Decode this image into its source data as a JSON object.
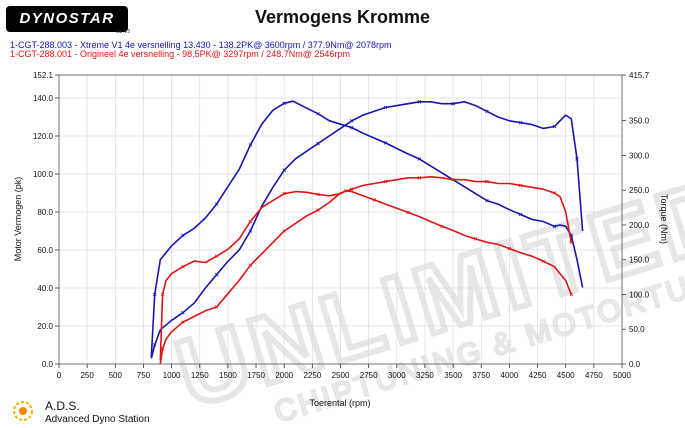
{
  "header": {
    "logo_text": "DYNOSTAR",
    "logo_sub": "cal V3",
    "title": "Vermogens Kromme"
  },
  "runs": [
    {
      "label": "1-CGT-288.003 - Xtreme V1 4e versnelling 13.430   - 138.2PK@ 3600rpm / 377.9Nm@ 2078rpm",
      "color": "#1515b3"
    },
    {
      "label": "1-CGT-288.001 - Origineel 4e versnelling  - 98.5PK@ 3297rpm / 248.7Nm@ 2546rpm",
      "color": "#e21414"
    }
  ],
  "footer": {
    "brand": "A.D.S.",
    "subtitle": "Advanced Dyno Station"
  },
  "watermark": {
    "text_big": "UNLIMITED TUNING",
    "text_small": "CHIPTUNING & MOTORTUNING",
    "color": "#e4e4e4"
  },
  "chart_data": {
    "type": "line",
    "title": "Vermogens Kromme",
    "xlabel": "Toerental (rpm)",
    "ylabel": "Motor Vermogen (pk)",
    "y2label": "Torque (Nm)",
    "xlim": [
      0,
      5000
    ],
    "ylim": [
      0,
      152.1
    ],
    "y2lim": [
      0,
      415.7
    ],
    "xticks": [
      0,
      250,
      500,
      750,
      1000,
      1250,
      1500,
      1750,
      2000,
      2250,
      2500,
      2750,
      3000,
      3250,
      3500,
      3750,
      4000,
      4250,
      4500,
      4750,
      5000
    ],
    "yticks": [
      "0.0",
      "20.0",
      "40.0",
      "60.0",
      "80.0",
      "100.0",
      "120.0",
      "140.0",
      "152.1"
    ],
    "y2ticks": [
      "0.0",
      "50.0",
      "100.0",
      "150.0",
      "200.0",
      "250.0",
      "300.0",
      "350.0",
      "415.7"
    ],
    "grid": true,
    "series": [
      {
        "name": "1-CGT-288.003 - Xtreme V1 4e versnelling 13.430",
        "quantity": "power",
        "axis": "left",
        "color": "#1515b3",
        "x": [
          820,
          850,
          900,
          1000,
          1100,
          1200,
          1300,
          1400,
          1500,
          1600,
          1700,
          1800,
          1900,
          2000,
          2100,
          2200,
          2300,
          2400,
          2500,
          2600,
          2700,
          2800,
          2900,
          3000,
          3100,
          3200,
          3300,
          3400,
          3500,
          3600,
          3700,
          3800,
          3900,
          4000,
          4100,
          4200,
          4300,
          4400,
          4500,
          4550,
          4600,
          4650
        ],
        "y": [
          3,
          10,
          18,
          23,
          27,
          32,
          40,
          47,
          54,
          60,
          70,
          83,
          93,
          102,
          108,
          112,
          116,
          120,
          124,
          128,
          131,
          133,
          135,
          136,
          137,
          138,
          138,
          137,
          137,
          138,
          136,
          133,
          130,
          128,
          127,
          126,
          124,
          125,
          131,
          129,
          108,
          70
        ]
      },
      {
        "name": "1-CGT-288.003 - Xtreme V1 4e versnelling 13.430",
        "quantity": "torque",
        "axis": "right",
        "color": "#1515b3",
        "x": [
          820,
          850,
          900,
          1000,
          1100,
          1200,
          1300,
          1400,
          1500,
          1600,
          1700,
          1800,
          1900,
          2000,
          2078,
          2200,
          2300,
          2400,
          2500,
          2600,
          2700,
          2800,
          2900,
          3000,
          3100,
          3200,
          3300,
          3400,
          3500,
          3600,
          3700,
          3800,
          3900,
          4000,
          4100,
          4200,
          4300,
          4400,
          4450,
          4500,
          4550,
          4600,
          4650
        ],
        "y": [
          10,
          100,
          150,
          170,
          185,
          195,
          210,
          230,
          255,
          280,
          315,
          345,
          365,
          375,
          378,
          368,
          360,
          350,
          345,
          340,
          332,
          325,
          318,
          310,
          302,
          295,
          285,
          275,
          265,
          255,
          245,
          235,
          230,
          222,
          215,
          208,
          205,
          198,
          200,
          198,
          185,
          150,
          110
        ]
      },
      {
        "name": "1-CGT-288.001 - Origineel 4e versnelling",
        "quantity": "power",
        "axis": "left",
        "color": "#e21414",
        "x": [
          900,
          920,
          950,
          1000,
          1100,
          1200,
          1300,
          1400,
          1500,
          1600,
          1700,
          1800,
          1900,
          2000,
          2100,
          2200,
          2300,
          2400,
          2500,
          2600,
          2700,
          2800,
          2900,
          3000,
          3100,
          3200,
          3300,
          3400,
          3500,
          3600,
          3700,
          3800,
          3900,
          4000,
          4100,
          4200,
          4300,
          4400,
          4450,
          4500,
          4550
        ],
        "y": [
          0,
          8,
          13,
          17,
          22,
          25,
          28,
          30,
          37,
          44,
          52,
          58,
          64,
          70,
          74,
          78,
          81,
          85,
          90,
          92,
          94,
          95,
          96,
          97,
          98,
          98,
          98.5,
          98,
          97,
          97,
          96,
          96,
          95,
          95,
          94,
          93,
          92,
          90,
          88,
          80,
          64
        ]
      },
      {
        "name": "1-CGT-288.001 - Origineel 4e versnelling",
        "quantity": "torque",
        "axis": "right",
        "color": "#e21414",
        "x": [
          900,
          920,
          950,
          1000,
          1100,
          1200,
          1300,
          1400,
          1500,
          1600,
          1700,
          1800,
          1900,
          2000,
          2100,
          2200,
          2300,
          2400,
          2500,
          2546,
          2600,
          2700,
          2800,
          2900,
          3000,
          3100,
          3200,
          3300,
          3400,
          3500,
          3600,
          3700,
          3800,
          3900,
          4000,
          4100,
          4200,
          4300,
          4400,
          4500,
          4550
        ],
        "y": [
          5,
          100,
          120,
          130,
          140,
          148,
          146,
          155,
          165,
          180,
          205,
          225,
          235,
          245,
          248,
          247,
          244,
          242,
          245,
          249,
          248,
          242,
          236,
          230,
          224,
          218,
          212,
          205,
          198,
          192,
          185,
          180,
          175,
          172,
          166,
          160,
          155,
          148,
          140,
          120,
          100
        ]
      }
    ]
  }
}
